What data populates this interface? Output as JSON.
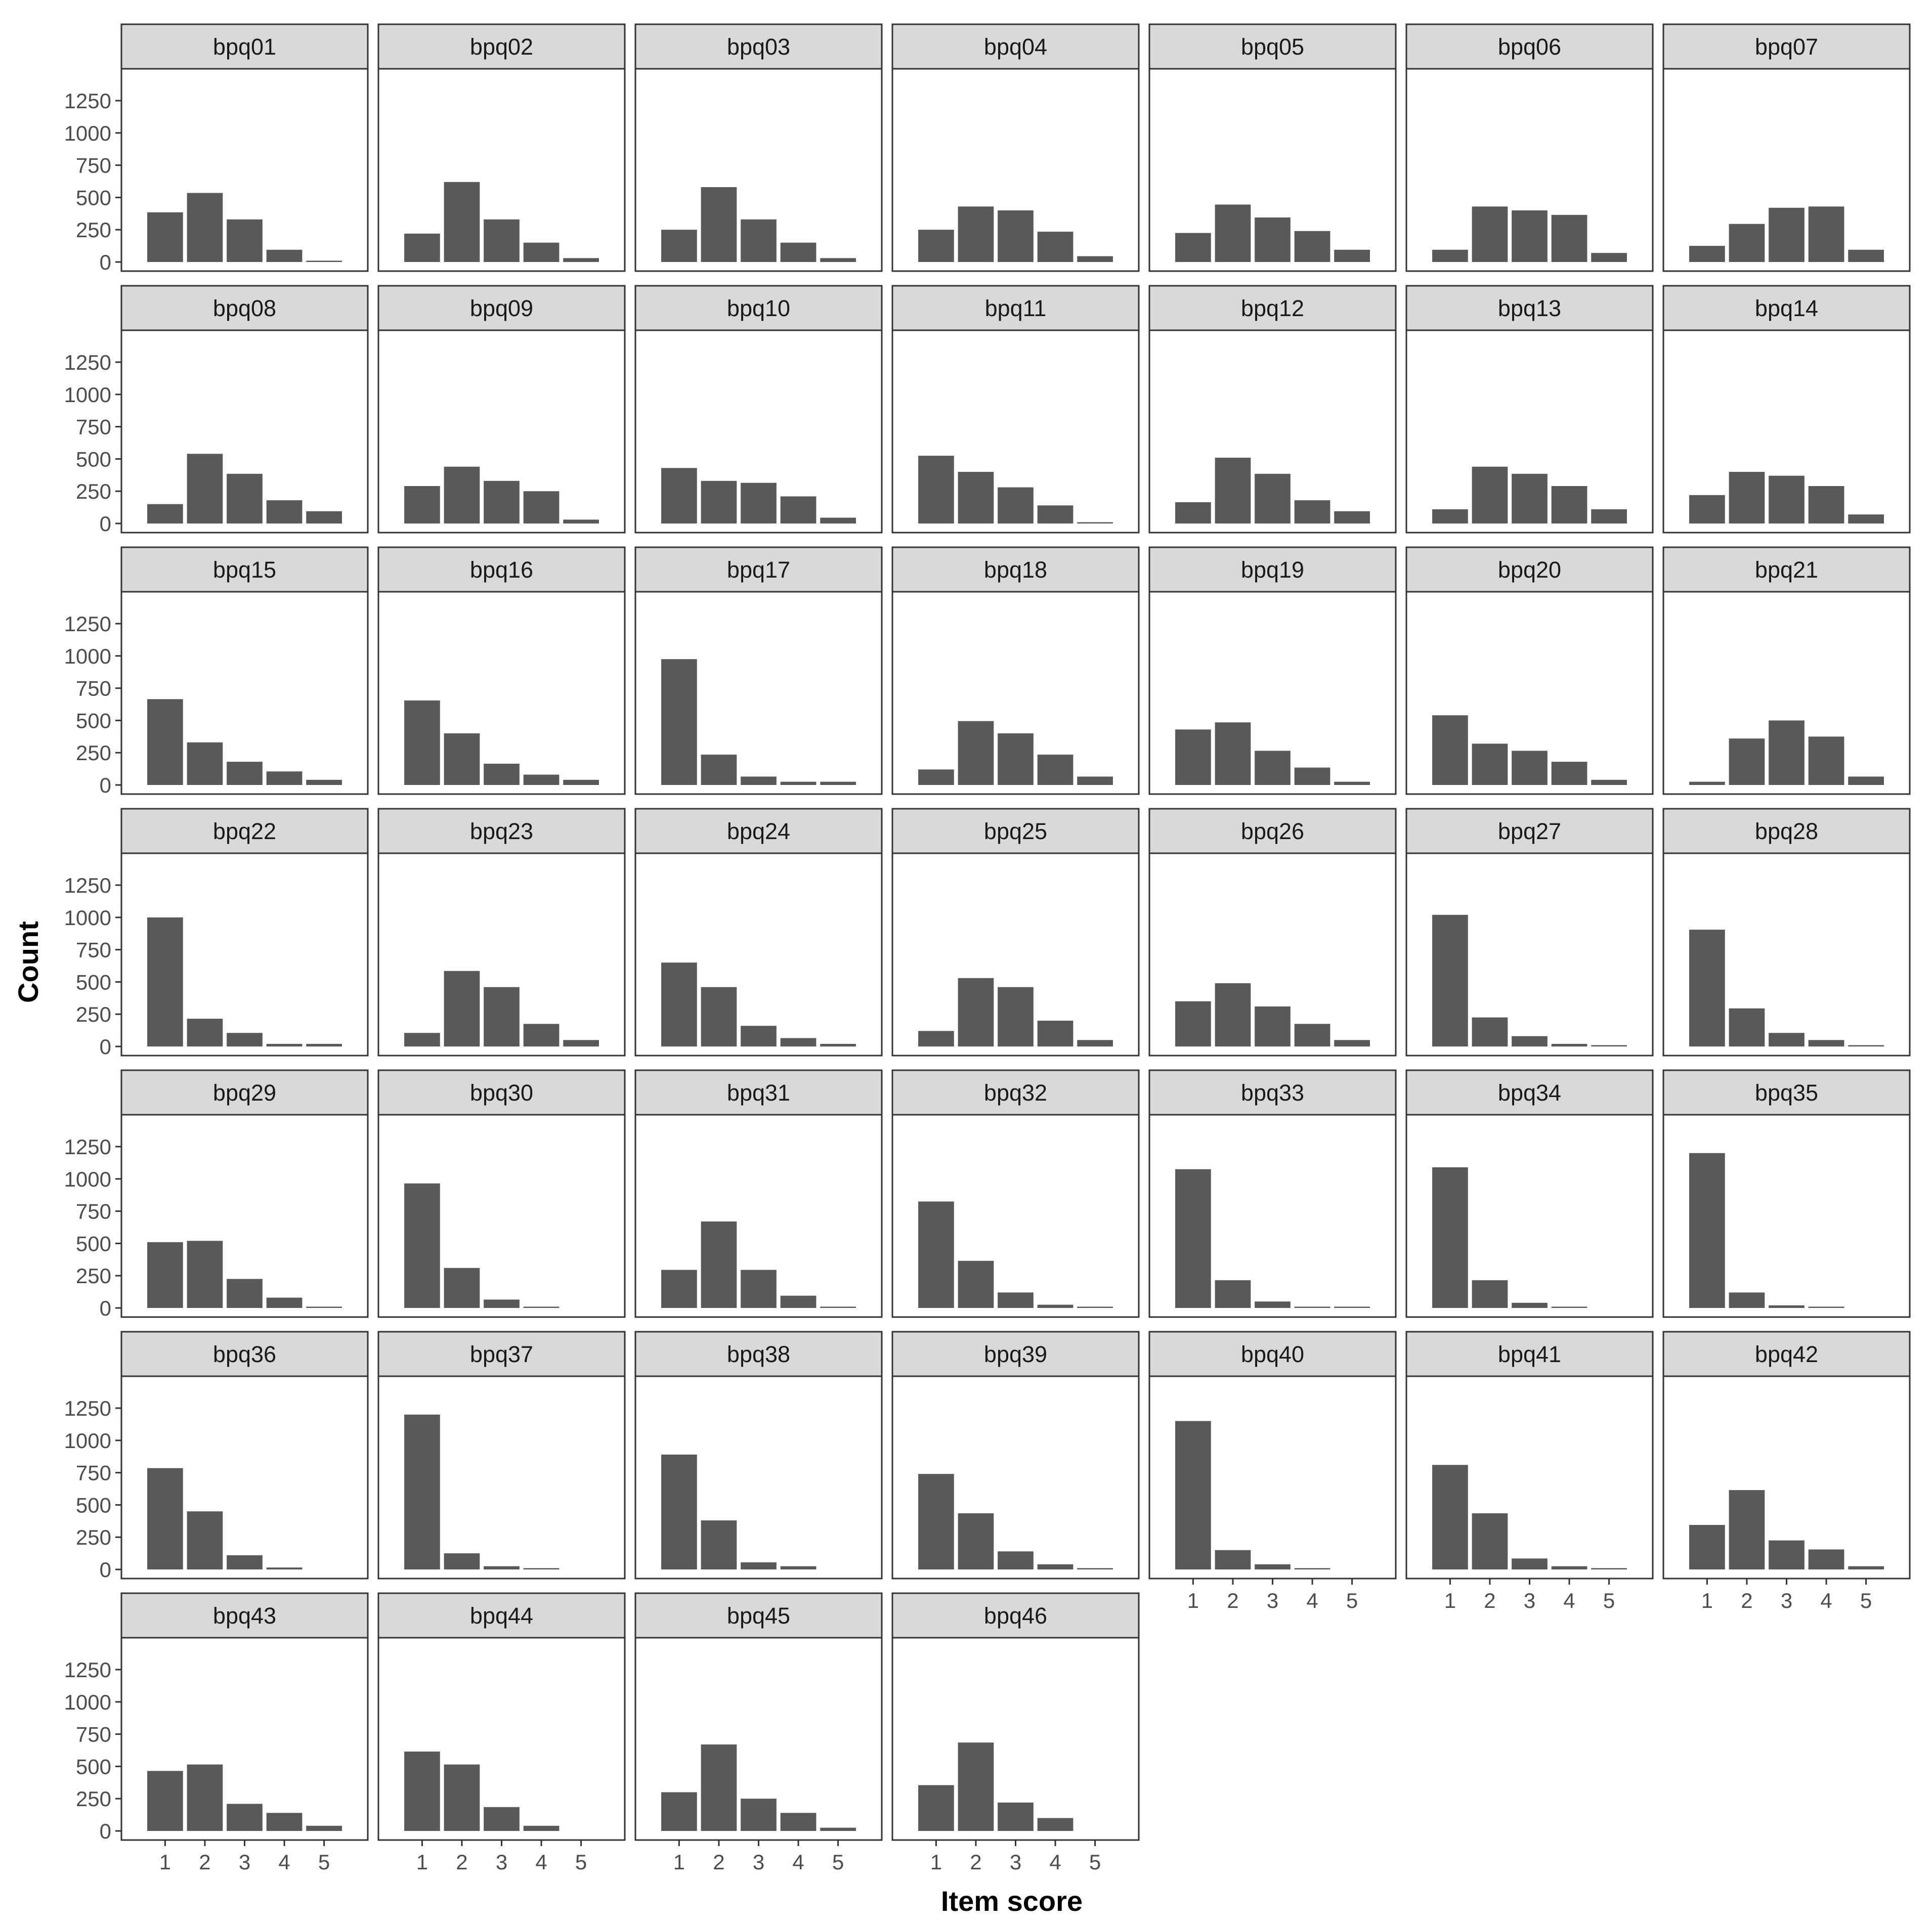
{
  "chart_data": {
    "type": "bar",
    "layout": "facet-grid",
    "xlabel": "Item score",
    "ylabel": "Count",
    "categories": [
      "1",
      "2",
      "3",
      "4",
      "5"
    ],
    "ylim": [
      0,
      1250
    ],
    "yticks": [
      0,
      250,
      500,
      750,
      1000,
      1250
    ],
    "grid": false,
    "colors": {
      "bar": "#595959",
      "strip_fill": "#d9d9d9",
      "panel_border": "#333333",
      "axis_text": "#4d4d4d",
      "axis_title": "#000000"
    },
    "facets": [
      {
        "name": "bpq01",
        "values": [
          385,
          535,
          330,
          95,
          10
        ]
      },
      {
        "name": "bpq02",
        "values": [
          220,
          620,
          330,
          150,
          30
        ]
      },
      {
        "name": "bpq03",
        "values": [
          250,
          580,
          330,
          150,
          30
        ]
      },
      {
        "name": "bpq04",
        "values": [
          250,
          430,
          400,
          235,
          45
        ]
      },
      {
        "name": "bpq05",
        "values": [
          225,
          445,
          345,
          240,
          95
        ]
      },
      {
        "name": "bpq06",
        "values": [
          95,
          430,
          400,
          365,
          70
        ]
      },
      {
        "name": "bpq07",
        "values": [
          125,
          295,
          420,
          430,
          95
        ]
      },
      {
        "name": "bpq08",
        "values": [
          150,
          540,
          385,
          180,
          95
        ]
      },
      {
        "name": "bpq09",
        "values": [
          290,
          440,
          330,
          250,
          30
        ]
      },
      {
        "name": "bpq10",
        "values": [
          430,
          330,
          315,
          210,
          45
        ]
      },
      {
        "name": "bpq11",
        "values": [
          525,
          400,
          280,
          140,
          10
        ]
      },
      {
        "name": "bpq12",
        "values": [
          165,
          510,
          385,
          180,
          95
        ]
      },
      {
        "name": "bpq13",
        "values": [
          110,
          440,
          385,
          290,
          110
        ]
      },
      {
        "name": "bpq14",
        "values": [
          220,
          400,
          370,
          290,
          70
        ]
      },
      {
        "name": "bpq15",
        "values": [
          665,
          330,
          180,
          105,
          40
        ]
      },
      {
        "name": "bpq16",
        "values": [
          655,
          400,
          165,
          80,
          40
        ]
      },
      {
        "name": "bpq17",
        "values": [
          975,
          235,
          65,
          25,
          25
        ]
      },
      {
        "name": "bpq18",
        "values": [
          120,
          495,
          400,
          235,
          65
        ]
      },
      {
        "name": "bpq19",
        "values": [
          430,
          485,
          265,
          135,
          25
        ]
      },
      {
        "name": "bpq20",
        "values": [
          540,
          320,
          265,
          180,
          40
        ]
      },
      {
        "name": "bpq21",
        "values": [
          25,
          360,
          500,
          375,
          65
        ]
      },
      {
        "name": "bpq22",
        "values": [
          1000,
          215,
          105,
          20,
          20
        ]
      },
      {
        "name": "bpq23",
        "values": [
          105,
          585,
          460,
          175,
          50
        ]
      },
      {
        "name": "bpq24",
        "values": [
          650,
          460,
          160,
          65,
          20
        ]
      },
      {
        "name": "bpq25",
        "values": [
          120,
          530,
          460,
          200,
          50
        ]
      },
      {
        "name": "bpq26",
        "values": [
          350,
          490,
          310,
          175,
          50
        ]
      },
      {
        "name": "bpq27",
        "values": [
          1020,
          225,
          80,
          20,
          10
        ]
      },
      {
        "name": "bpq28",
        "values": [
          905,
          295,
          105,
          50,
          10
        ]
      },
      {
        "name": "bpq29",
        "values": [
          510,
          520,
          225,
          80,
          10
        ]
      },
      {
        "name": "bpq30",
        "values": [
          965,
          310,
          65,
          10,
          0
        ]
      },
      {
        "name": "bpq31",
        "values": [
          295,
          670,
          295,
          95,
          10
        ]
      },
      {
        "name": "bpq32",
        "values": [
          825,
          365,
          120,
          25,
          10
        ]
      },
      {
        "name": "bpq33",
        "values": [
          1075,
          215,
          50,
          10,
          10
        ]
      },
      {
        "name": "bpq34",
        "values": [
          1090,
          215,
          40,
          10,
          0
        ]
      },
      {
        "name": "bpq35",
        "values": [
          1200,
          120,
          20,
          10,
          0
        ]
      },
      {
        "name": "bpq36",
        "values": [
          785,
          450,
          110,
          15,
          0
        ]
      },
      {
        "name": "bpq37",
        "values": [
          1200,
          125,
          25,
          10,
          0
        ]
      },
      {
        "name": "bpq38",
        "values": [
          890,
          380,
          55,
          25,
          0
        ]
      },
      {
        "name": "bpq39",
        "values": [
          740,
          435,
          140,
          40,
          10
        ]
      },
      {
        "name": "bpq40",
        "values": [
          1150,
          150,
          40,
          10,
          0
        ]
      },
      {
        "name": "bpq41",
        "values": [
          810,
          435,
          85,
          25,
          10
        ]
      },
      {
        "name": "bpq42",
        "values": [
          345,
          615,
          225,
          155,
          25
        ]
      },
      {
        "name": "bpq43",
        "values": [
          465,
          515,
          210,
          140,
          40
        ]
      },
      {
        "name": "bpq44",
        "values": [
          615,
          515,
          185,
          40,
          0
        ]
      },
      {
        "name": "bpq45",
        "values": [
          300,
          670,
          250,
          140,
          25
        ]
      },
      {
        "name": "bpq46",
        "values": [
          355,
          685,
          220,
          100,
          0
        ]
      }
    ]
  }
}
